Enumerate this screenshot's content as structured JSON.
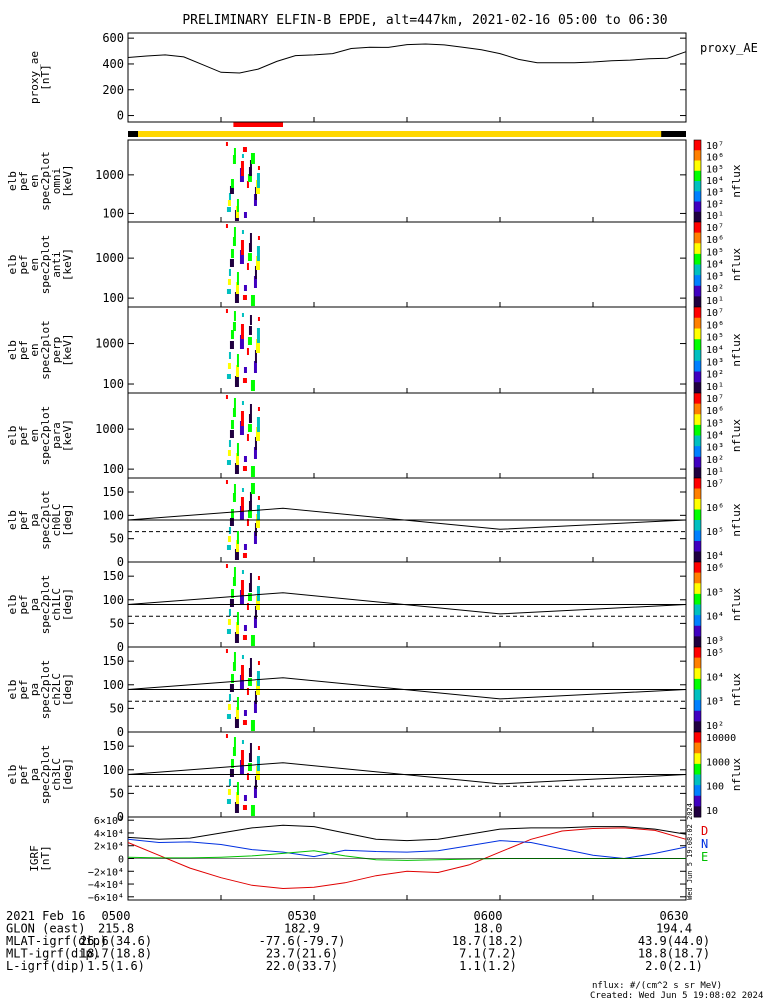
{
  "title": "PRELIMINARY ELFIN-B EPDE, alt=447km, 2021-02-16 05:00 to 06:30",
  "created": "Created: Wed Jun  5 19:08:02 2024",
  "nflux_units": "nflux: #/(cm^2 s sr MeV)",
  "side_stamp": "Wed Jun  5 19:08:02 2024",
  "colors": {
    "ae_line": "#000000",
    "bar_yellow": "#ffd700",
    "bar_black": "#000000",
    "bar_red": "#ff0000",
    "igrf_d": "#e00000",
    "igrf_n": "#0030e0",
    "igrf_e": "#00c000",
    "igrf_total": "#000000"
  },
  "chart_data": {
    "type": "line",
    "time_axis": {
      "start": "05:00",
      "end": "06:30"
    },
    "status_bar": {
      "yellow_range": [
        "05:00",
        "06:26"
      ],
      "red_range": [
        "05:17",
        "05:25"
      ]
    },
    "panels": [
      {
        "id": "ae",
        "ylabel": [
          "proxy_ae",
          "[nT]"
        ],
        "legend": "proxy_AE",
        "ylim": [
          -50,
          640
        ],
        "ticks": [
          "600",
          "400",
          "200",
          "0"
        ],
        "tick_values": [
          600,
          400,
          200,
          0
        ],
        "series": [
          {
            "name": "proxy_AE",
            "t": [
              0,
              3,
              6,
              9,
              12,
              15,
              18,
              21,
              24,
              27,
              30,
              33,
              36,
              39,
              42,
              45,
              48,
              51,
              54,
              57,
              60,
              63,
              66,
              69,
              72,
              75,
              78,
              81,
              84,
              87,
              90
            ],
            "values": [
              450,
              462,
              470,
              455,
              395,
              335,
              330,
              360,
              420,
              465,
              470,
              480,
              520,
              530,
              528,
              550,
              555,
              548,
              530,
              510,
              480,
              435,
              410,
              410,
              410,
              415,
              425,
              430,
              440,
              445,
              495
            ]
          }
        ]
      },
      {
        "id": "omni",
        "ylabel": [
          "elb",
          "pef",
          "en",
          "spec2plot",
          "omni",
          "[keV]"
        ],
        "ylog": true,
        "ylim": [
          60,
          8000
        ],
        "ticks": [
          "1000",
          "100"
        ],
        "tick_values": [
          1000,
          100
        ],
        "cbar": {
          "label": "nflux",
          "ticks": [
            "10⁷",
            "10⁶",
            "10⁵",
            "10⁴",
            "10³",
            "10²",
            "10¹"
          ]
        }
      },
      {
        "id": "anti",
        "ylabel": [
          "elb",
          "pef",
          "en",
          "spec2plot",
          "anti",
          "[keV]"
        ],
        "ylog": true,
        "ylim": [
          60,
          8000
        ],
        "ticks": [
          "1000",
          "100"
        ],
        "tick_values": [
          1000,
          100
        ],
        "cbar": {
          "label": "nflux",
          "ticks": [
            "10⁷",
            "10⁶",
            "10⁵",
            "10⁴",
            "10³",
            "10²",
            "10¹"
          ]
        }
      },
      {
        "id": "perp",
        "ylabel": [
          "elb",
          "pef",
          "en",
          "spec2plot",
          "perp",
          "[keV]"
        ],
        "ylog": true,
        "ylim": [
          60,
          8000
        ],
        "ticks": [
          "1000",
          "100"
        ],
        "tick_values": [
          1000,
          100
        ],
        "cbar": {
          "label": "nflux",
          "ticks": [
            "10⁷",
            "10⁶",
            "10⁵",
            "10⁴",
            "10³",
            "10²",
            "10¹"
          ]
        }
      },
      {
        "id": "para",
        "ylabel": [
          "elb",
          "pef",
          "en",
          "spec2plot",
          "para",
          "[keV]"
        ],
        "ylog": true,
        "ylim": [
          60,
          8000
        ],
        "ticks": [
          "1000",
          "100"
        ],
        "tick_values": [
          1000,
          100
        ],
        "cbar": {
          "label": "nflux",
          "ticks": [
            "10⁷",
            "10⁶",
            "10⁵",
            "10⁴",
            "10³",
            "10²",
            "10¹"
          ]
        }
      },
      {
        "id": "ch0",
        "ylabel": [
          "elb",
          "pef",
          "pa",
          "spec2plot",
          "ch0LC",
          "[deg]"
        ],
        "ylim": [
          0,
          180
        ],
        "ticks": [
          "150",
          "100",
          "50",
          "0"
        ],
        "tick_values": [
          150,
          100,
          50,
          0
        ],
        "cbar": {
          "label": "nflux",
          "ticks": [
            "10⁷",
            "10⁶",
            "10⁵",
            "10⁴"
          ]
        }
      },
      {
        "id": "ch1",
        "ylabel": [
          "elb",
          "pef",
          "pa",
          "spec2plot",
          "ch1LC",
          "[deg]"
        ],
        "ylim": [
          0,
          180
        ],
        "ticks": [
          "150",
          "100",
          "50",
          "0"
        ],
        "tick_values": [
          150,
          100,
          50,
          0
        ],
        "cbar": {
          "label": "nflux",
          "ticks": [
            "10⁶",
            "10⁵",
            "10⁴",
            "10³"
          ]
        }
      },
      {
        "id": "ch2",
        "ylabel": [
          "elb",
          "pef",
          "pa",
          "spec2plot",
          "ch2LC",
          "[deg]"
        ],
        "ylim": [
          0,
          180
        ],
        "ticks": [
          "150",
          "100",
          "50",
          "0"
        ],
        "tick_values": [
          150,
          100,
          50,
          0
        ],
        "cbar": {
          "label": "nflux",
          "ticks": [
            "10⁵",
            "10⁴",
            "10³",
            "10²"
          ]
        }
      },
      {
        "id": "ch3",
        "ylabel": [
          "elb",
          "pef",
          "pa",
          "spec2plot",
          "ch3LC",
          "[deg]"
        ],
        "ylim": [
          0,
          180
        ],
        "ticks": [
          "150",
          "100",
          "50",
          "0"
        ],
        "tick_values": [
          150,
          100,
          50,
          0
        ],
        "cbar": {
          "label": "nflux",
          "ticks": [
            "10000",
            "1000",
            "100",
            "10"
          ]
        }
      },
      {
        "id": "igrf",
        "ylabel": [
          "IGRF",
          "[nT]"
        ],
        "ylim": [
          -65000,
          65000
        ],
        "ticks": [
          "6×10⁴",
          "4×10⁴",
          "2×10⁴",
          "0",
          "−2×10⁴",
          "−4×10⁴",
          "−6×10⁴"
        ],
        "tick_values": [
          60000,
          40000,
          20000,
          0,
          -20000,
          -40000,
          -60000
        ],
        "legend": [
          "D",
          "N",
          "E"
        ],
        "series": [
          {
            "name": "D",
            "t": [
              0,
              5,
              10,
              15,
              20,
              25,
              30,
              35,
              40,
              45,
              50,
              55,
              60,
              65,
              70,
              75,
              80,
              85,
              90
            ],
            "values": [
              25000,
              5000,
              -15000,
              -30000,
              -42000,
              -47000,
              -45000,
              -38000,
              -27000,
              -20000,
              -22000,
              -10000,
              10000,
              30000,
              43000,
              47000,
              48000,
              44000,
              30000
            ]
          },
          {
            "name": "N",
            "t": [
              0,
              5,
              10,
              15,
              20,
              25,
              30,
              35,
              40,
              45,
              50,
              55,
              60,
              65,
              70,
              75,
              80,
              85,
              90
            ],
            "values": [
              30000,
              25000,
              26000,
              22000,
              14000,
              10000,
              3000,
              13000,
              11000,
              10000,
              12000,
              20000,
              28000,
              25000,
              15000,
              5000,
              0,
              8000,
              18000
            ]
          },
          {
            "name": "E",
            "t": [
              0,
              5,
              10,
              15,
              20,
              25,
              30,
              35,
              40,
              45,
              50,
              55,
              60,
              65,
              70,
              75,
              80,
              85,
              90
            ],
            "values": [
              2000,
              1000,
              1000,
              2000,
              4000,
              8000,
              12000,
              4000,
              -2000,
              -3000,
              -2000,
              -1000,
              0,
              0,
              0,
              0,
              0,
              0,
              0
            ]
          },
          {
            "name": "total",
            "t": [
              0,
              5,
              10,
              15,
              20,
              25,
              30,
              35,
              40,
              45,
              50,
              55,
              60,
              65,
              70,
              75,
              80,
              85,
              90
            ],
            "values": [
              33000,
              30000,
              32000,
              40000,
              48000,
              52000,
              50000,
              40000,
              30000,
              28000,
              30000,
              38000,
              46000,
              48000,
              48000,
              50000,
              50000,
              46000,
              38000
            ]
          }
        ]
      },
      {
        "id": "lc",
        "lc_levels": [
          90,
          65
        ],
        "lc_curve_t": [
          0,
          25,
          60,
          90
        ],
        "lc_curve_v": [
          90,
          115,
          70,
          90
        ]
      }
    ],
    "orbit_table": {
      "rows": [
        {
          "label": "2021 Feb 16",
          "values": [
            "0500",
            "0530",
            "0600",
            "0630"
          ]
        },
        {
          "label": "GLON (east)",
          "values": [
            "215.8",
            "182.9",
            "18.0",
            "194.4"
          ]
        },
        {
          "label": "MLAT-igrf(dip)",
          "values": [
            "26.6(34.6)",
            "-77.6(-79.7)",
            "18.7(18.2)",
            "43.9(44.0)"
          ]
        },
        {
          "label": "MLT-igrf(dip)",
          "values": [
            "18.7(18.8)",
            "23.7(21.6)",
            "7.1(7.2)",
            "18.8(18.7)"
          ]
        },
        {
          "label": "L-igrf(dip)",
          "values": [
            "1.5(1.6)",
            "22.0(33.7)",
            "1.1(1.2)",
            "2.0(2.1)"
          ]
        }
      ]
    }
  }
}
